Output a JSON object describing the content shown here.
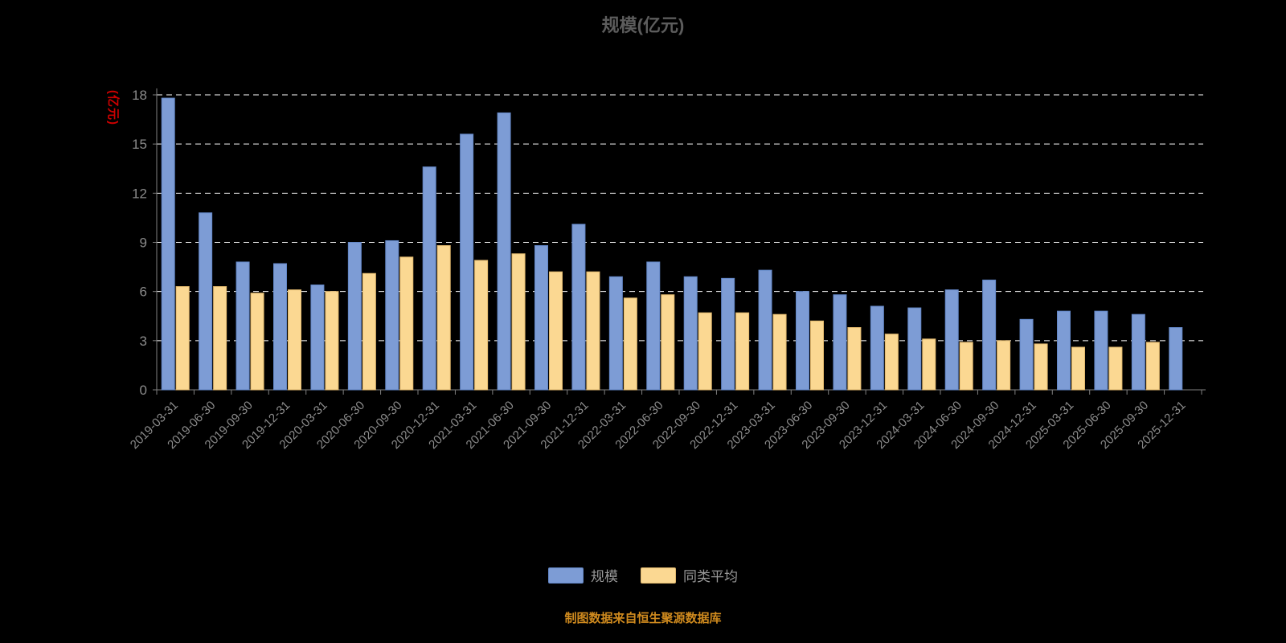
{
  "title": "规模(亿元)",
  "y_axis_name": "(亿元)",
  "footer": "制图数据来自恒生聚源数据库",
  "colors": {
    "background": "#000000",
    "title_text": "#5C5C5C",
    "axis_text": "#8C8C8C",
    "axis_line": "#808080",
    "grid_line": "#FFFFFF",
    "y_unit_text": "#CC0000",
    "legend_text": "#999999",
    "footer_text": "#CF8A1E"
  },
  "chart_data": {
    "type": "bar",
    "title": "规模(亿元)",
    "xlabel": "",
    "ylabel": "(亿元)",
    "ylim": [
      0,
      18
    ],
    "yticks": [
      0,
      3,
      6,
      9,
      12,
      15,
      18
    ],
    "grid": "dashed-horizontal",
    "legend_position": "bottom",
    "categories": [
      "2019-03-31",
      "2019-06-30",
      "2019-09-30",
      "2019-12-31",
      "2020-03-31",
      "2020-06-30",
      "2020-09-30",
      "2020-12-31",
      "2021-03-31",
      "2021-06-30",
      "2021-09-30",
      "2021-12-31",
      "2022-03-31",
      "2022-06-30",
      "2022-09-30",
      "2022-12-31",
      "2023-03-31",
      "2023-06-30",
      "2023-09-30",
      "2023-12-31",
      "2024-03-31",
      "2024-06-30",
      "2024-09-30",
      "2024-12-31",
      "2025-03-31",
      "2025-06-30",
      "2025-09-30",
      "2025-12-31"
    ],
    "series": [
      {
        "name": "规模",
        "color": "#7D9CD5",
        "border": "#6286C6",
        "values": [
          17.8,
          10.8,
          7.8,
          7.7,
          6.4,
          9.0,
          9.1,
          13.6,
          15.6,
          16.9,
          8.8,
          10.1,
          6.9,
          7.8,
          6.9,
          6.8,
          7.3,
          6.0,
          5.8,
          5.1,
          5.0,
          6.1,
          6.7,
          4.3,
          4.8,
          4.8,
          4.6,
          3.8
        ]
      },
      {
        "name": "同类平均",
        "color": "#FBD892",
        "border": "#E2B96E",
        "values": [
          6.3,
          6.3,
          5.9,
          6.1,
          6.0,
          7.1,
          8.1,
          8.8,
          7.9,
          8.3,
          7.2,
          7.2,
          5.6,
          5.8,
          4.7,
          4.7,
          4.6,
          4.2,
          3.8,
          3.4,
          3.1,
          2.9,
          3.0,
          2.8,
          2.6,
          2.6,
          2.9,
          null
        ]
      }
    ]
  }
}
